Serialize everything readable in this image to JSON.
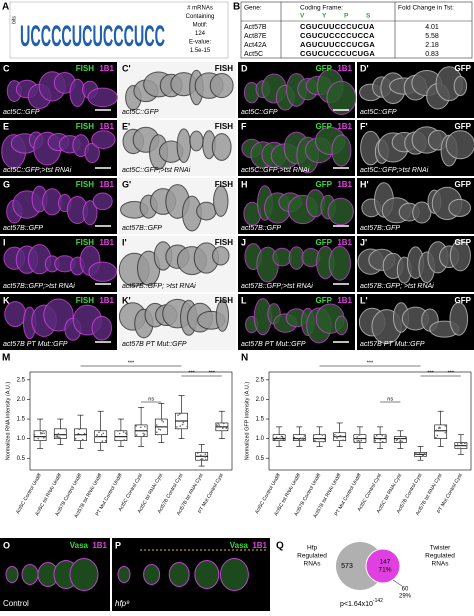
{
  "panel_A": {
    "label": "A",
    "axis_label": "bits",
    "logo": "UCCCCUCUCCCUCC",
    "motif_text": [
      "# mRNAs",
      "Containing",
      "Motif:",
      "124",
      "E-value:",
      "1.5e-15"
    ]
  },
  "panel_B": {
    "label": "B",
    "headers": [
      "Gene:",
      "Coding Frame:",
      "Fold Change in Tst:"
    ],
    "frame_letters": [
      "V",
      "Y",
      "P",
      "S"
    ],
    "rows": [
      [
        "Act57B",
        "CGUCUUCCCUCUA",
        "4.01"
      ],
      [
        "Act87E",
        "CGUCUCCCCUCCA",
        "5.58"
      ],
      [
        "Act42A",
        "AGUCUUCCCUCGA",
        "2.18"
      ],
      [
        "Act5C",
        "CGUCUCCCUCUGA",
        "0.83"
      ]
    ]
  },
  "image_panels": [
    {
      "label": "C",
      "channels": [
        "FISH",
        "1B1"
      ],
      "caption": "act5C::GFP"
    },
    {
      "label": "C'",
      "channels": [
        "FISH"
      ],
      "caption": "act5C::GFP"
    },
    {
      "label": "D",
      "channels": [
        "GFP",
        "1B1"
      ],
      "caption": "act5C::GFP"
    },
    {
      "label": "D'",
      "channels": [
        "GFP"
      ],
      "caption": "act5C::GFP"
    },
    {
      "label": "E",
      "channels": [
        "FISH",
        "1B1"
      ],
      "caption": "act5C::GFP;>tst RNAi"
    },
    {
      "label": "E'",
      "channels": [
        "FISH"
      ],
      "caption": "act5C::GFP;>tst RNAi"
    },
    {
      "label": "F",
      "channels": [
        "GFP",
        "1B1"
      ],
      "caption": "act5C::GFP;>tst RNAi"
    },
    {
      "label": "F'",
      "channels": [
        "GFP"
      ],
      "caption": "act5C::GFP;>tst RNAi"
    },
    {
      "label": "G",
      "channels": [
        "FISH",
        "1B1"
      ],
      "caption": "act57B::GFP"
    },
    {
      "label": "G'",
      "channels": [
        "FISH"
      ],
      "caption": "act57B::GFP"
    },
    {
      "label": "H",
      "channels": [
        "GFP",
        "1B1"
      ],
      "caption": "act57B::GFP"
    },
    {
      "label": "H'",
      "channels": [
        "GFP"
      ],
      "caption": "act57B::GFP"
    },
    {
      "label": "I",
      "channels": [
        "FISH",
        "1B1"
      ],
      "caption": "act57B::GFP;>tst RNAi"
    },
    {
      "label": "I'",
      "channels": [
        "FISH"
      ],
      "caption": "act57B::GFP; >tst RNAi"
    },
    {
      "label": "J",
      "channels": [
        "GFP",
        "1B1"
      ],
      "caption": "act57B::GFP;>tst RNAi"
    },
    {
      "label": "J'",
      "channels": [
        "GFP"
      ],
      "caption": "act57B::GFP; >tst RNAi"
    },
    {
      "label": "K",
      "channels": [
        "FISH",
        "1B1"
      ],
      "caption": "act57B PT Mut::GFP"
    },
    {
      "label": "K'",
      "channels": [
        "FISH"
      ],
      "caption": "act57B PT Mut::GFP"
    },
    {
      "label": "L",
      "channels": [
        "GFP",
        "1B1"
      ],
      "caption": "act57B PT Mut::GFP"
    },
    {
      "label": "L'",
      "channels": [
        "GFP"
      ],
      "caption": "act57B PT Mut::GFP"
    }
  ],
  "box_plots": [
    {
      "label": "M",
      "y_label": "Normalized RNA Intensity (A.U.)",
      "ylim": [
        0.2,
        2.7
      ],
      "yticks": [
        {
          "value": 0.5,
          "label": "0.5"
        },
        {
          "value": 1,
          "label": "1.0"
        },
        {
          "value": 1.5,
          "label": "1.5"
        },
        {
          "value": 2,
          "label": "2.0"
        },
        {
          "value": 2.5,
          "label": "2.5"
        }
      ],
      "categories": [
        "Act5C Control Undiff",
        "Act5C tst RNAi Undiff",
        "Act57B Control Undiff",
        "Act57B tst RNAi Undiff",
        "PT Mut Control Undiff",
        "Act5C Control Cyst",
        "Act5C tst RNAi Cyst",
        "Act57B Control Cyst",
        "Act57B tst RNAi Cyst",
        "PT Mut Control Cyst"
      ],
      "boxes": [
        [
          0.75,
          0.95,
          1.05,
          1.2,
          1.5
        ],
        [
          0.85,
          1.0,
          1.1,
          1.25,
          1.5
        ],
        [
          0.75,
          0.95,
          1.1,
          1.25,
          1.6
        ],
        [
          0.7,
          0.9,
          1.05,
          1.2,
          1.7
        ],
        [
          0.8,
          0.95,
          1.05,
          1.2,
          1.5
        ],
        [
          0.8,
          1.05,
          1.2,
          1.35,
          1.8
        ],
        [
          0.9,
          1.1,
          1.3,
          1.5,
          1.9
        ],
        [
          1.0,
          1.25,
          1.45,
          1.65,
          2.1
        ],
        [
          0.3,
          0.45,
          0.55,
          0.65,
          0.85
        ],
        [
          1.0,
          1.2,
          1.3,
          1.4,
          1.7
        ]
      ],
      "significance": [
        "***",
        "ns",
        "***",
        "***"
      ]
    },
    {
      "label": "N",
      "y_label": "Normalized GFP Intensity (A.U.)",
      "ylim": [
        0.2,
        2.7
      ],
      "yticks": [
        {
          "value": 0.5,
          "label": "0.5"
        },
        {
          "value": 1,
          "label": "1.0"
        },
        {
          "value": 1.5,
          "label": "1.5"
        },
        {
          "value": 2,
          "label": "2.0"
        },
        {
          "value": 2.5,
          "label": "2.5"
        }
      ],
      "categories": [
        "Act5C Control Undiff",
        "Act5C tst RNAi Undiff",
        "Act57B Control Undiff",
        "Act57B tst RNAi Undiff",
        "PT Mut Control Undiff",
        "Act5C Control Cyst",
        "Act5C tst RNAi Cyst",
        "Act57B Control Cyst",
        "Act57B tst RNAi Cyst",
        "PT Mut Control Cyst"
      ],
      "boxes": [
        [
          0.8,
          0.95,
          1.0,
          1.1,
          1.3
        ],
        [
          0.8,
          0.95,
          1.0,
          1.1,
          1.3
        ],
        [
          0.8,
          0.92,
          1.0,
          1.1,
          1.3
        ],
        [
          0.8,
          0.95,
          1.05,
          1.15,
          1.4
        ],
        [
          0.75,
          0.9,
          1.0,
          1.1,
          1.3
        ],
        [
          0.75,
          0.9,
          1.0,
          1.1,
          1.3
        ],
        [
          0.75,
          0.9,
          1.0,
          1.05,
          1.2
        ],
        [
          0.45,
          0.55,
          0.6,
          0.65,
          0.8
        ],
        [
          0.8,
          1.0,
          1.2,
          1.35,
          1.7
        ],
        [
          0.6,
          0.75,
          0.82,
          0.9,
          1.1
        ]
      ],
      "significance": [
        "***",
        "ns",
        "***",
        "***"
      ]
    }
  ],
  "panel_O": {
    "label": "O",
    "channels": [
      "Vasa",
      "1B1"
    ],
    "caption": "Control"
  },
  "panel_P": {
    "label": "P",
    "channels": [
      "Vasa",
      "1B1"
    ],
    "caption": "hfp⁹"
  },
  "panel_Q": {
    "label": "Q",
    "left_title": [
      "Hfp",
      "Regulated",
      "RNAs"
    ],
    "right_title": [
      "Twister",
      "Regulated",
      "RNAs"
    ],
    "left_only": "573",
    "overlap": "147",
    "overlap_pct": "71%",
    "right_only": "60",
    "right_pct": "29%",
    "p_value": "p<1.64x10",
    "p_exponent": "-142"
  }
}
